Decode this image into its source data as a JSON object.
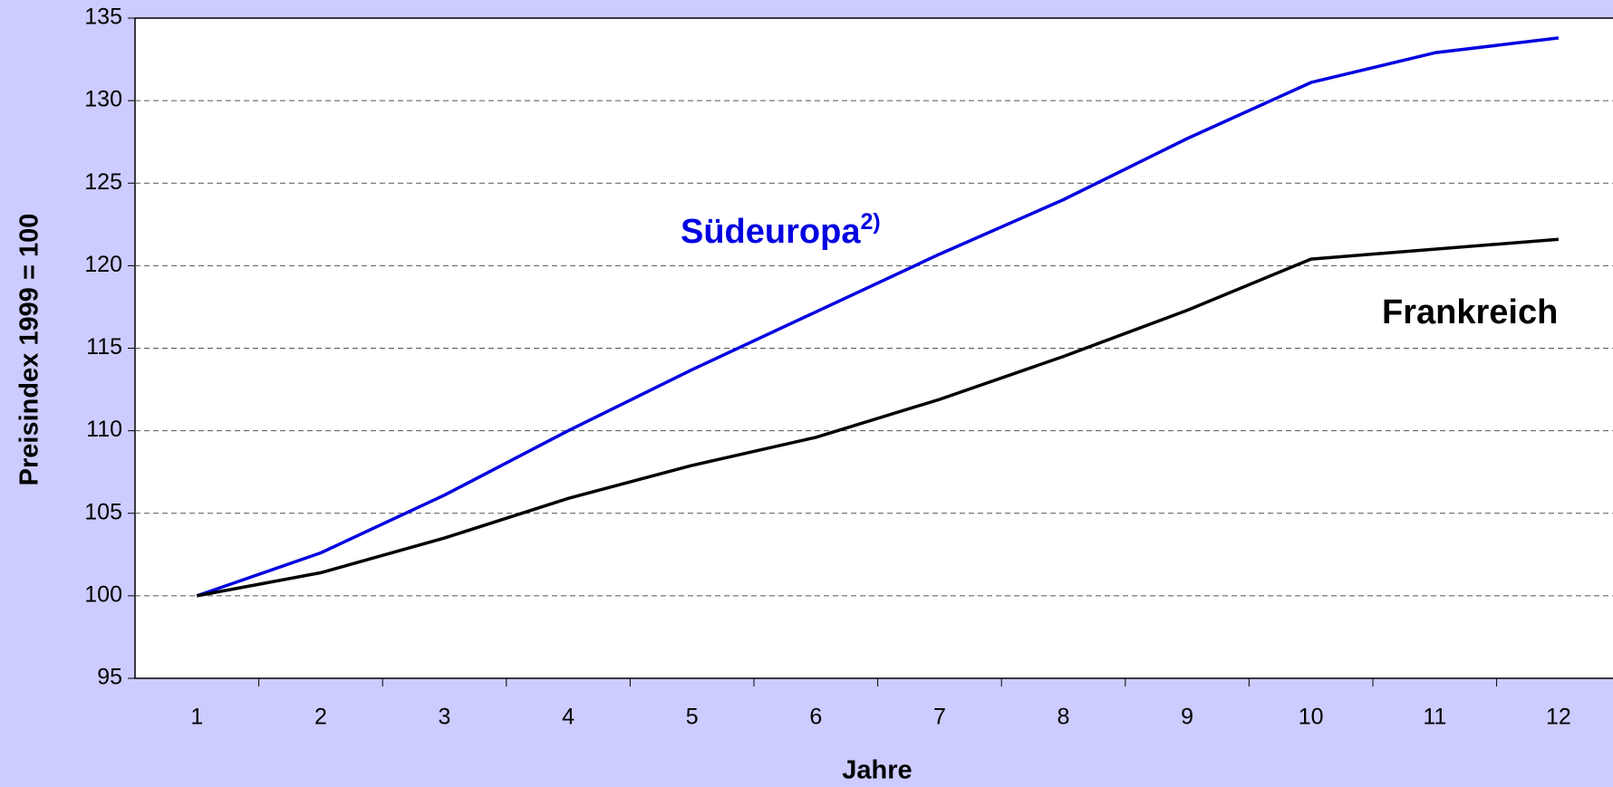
{
  "chart_data": {
    "type": "line",
    "x_label": "Jahre",
    "y_label": "Preisindex 1999 = 100",
    "categories": [
      "1",
      "2",
      "3",
      "4",
      "5",
      "6",
      "7",
      "8",
      "9",
      "10",
      "11",
      "12"
    ],
    "series": [
      {
        "name": "Südeuropa",
        "name_footnote": "2)",
        "color": "#0000e0",
        "values": [
          100,
          102.6,
          106.1,
          110.0,
          113.7,
          117.2,
          120.7,
          124.0,
          127.7,
          131.1,
          132.9,
          133.8
        ]
      },
      {
        "name": "Frankreich",
        "color": "#000000",
        "values": [
          100,
          101.4,
          103.5,
          105.9,
          107.9,
          109.6,
          111.9,
          114.5,
          117.3,
          120.4,
          121.0,
          121.6
        ]
      }
    ],
    "ylim": [
      95,
      135
    ],
    "yticks": [
      95,
      100,
      105,
      110,
      115,
      120,
      125,
      130,
      135
    ],
    "grid": true
  }
}
